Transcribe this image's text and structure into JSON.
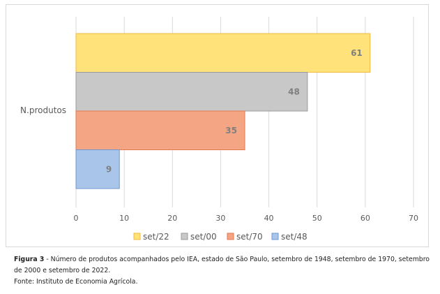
{
  "chart_data": {
    "type": "bar",
    "orientation": "horizontal",
    "categories": [
      "N.produtos"
    ],
    "series": [
      {
        "name": "set/22",
        "values": [
          61
        ],
        "color": "#ffe27a",
        "stroke": "#f2b93f"
      },
      {
        "name": "set/00",
        "values": [
          48
        ],
        "color": "#c8c8c8",
        "stroke": "#9a9a9a"
      },
      {
        "name": "set/70",
        "values": [
          35
        ],
        "color": "#f4a583",
        "stroke": "#e5774f"
      },
      {
        "name": "set/48",
        "values": [
          9
        ],
        "color": "#a9c6ea",
        "stroke": "#6f97cf"
      }
    ],
    "xlim": [
      0,
      70
    ],
    "xticks": [
      0,
      10,
      20,
      30,
      40,
      50,
      60,
      70
    ],
    "grid": true,
    "legend_position": "bottom",
    "data_labels": true
  },
  "caption": {
    "label": "Figura 3",
    "text": " - Número de produtos acompanhados pelo IEA, estado de São Paulo, setembro de 1948, setembro de 1970, setembro de 2000 e setembro de 2022.",
    "source": "Fonte: Instituto de Economia Agrícola."
  }
}
